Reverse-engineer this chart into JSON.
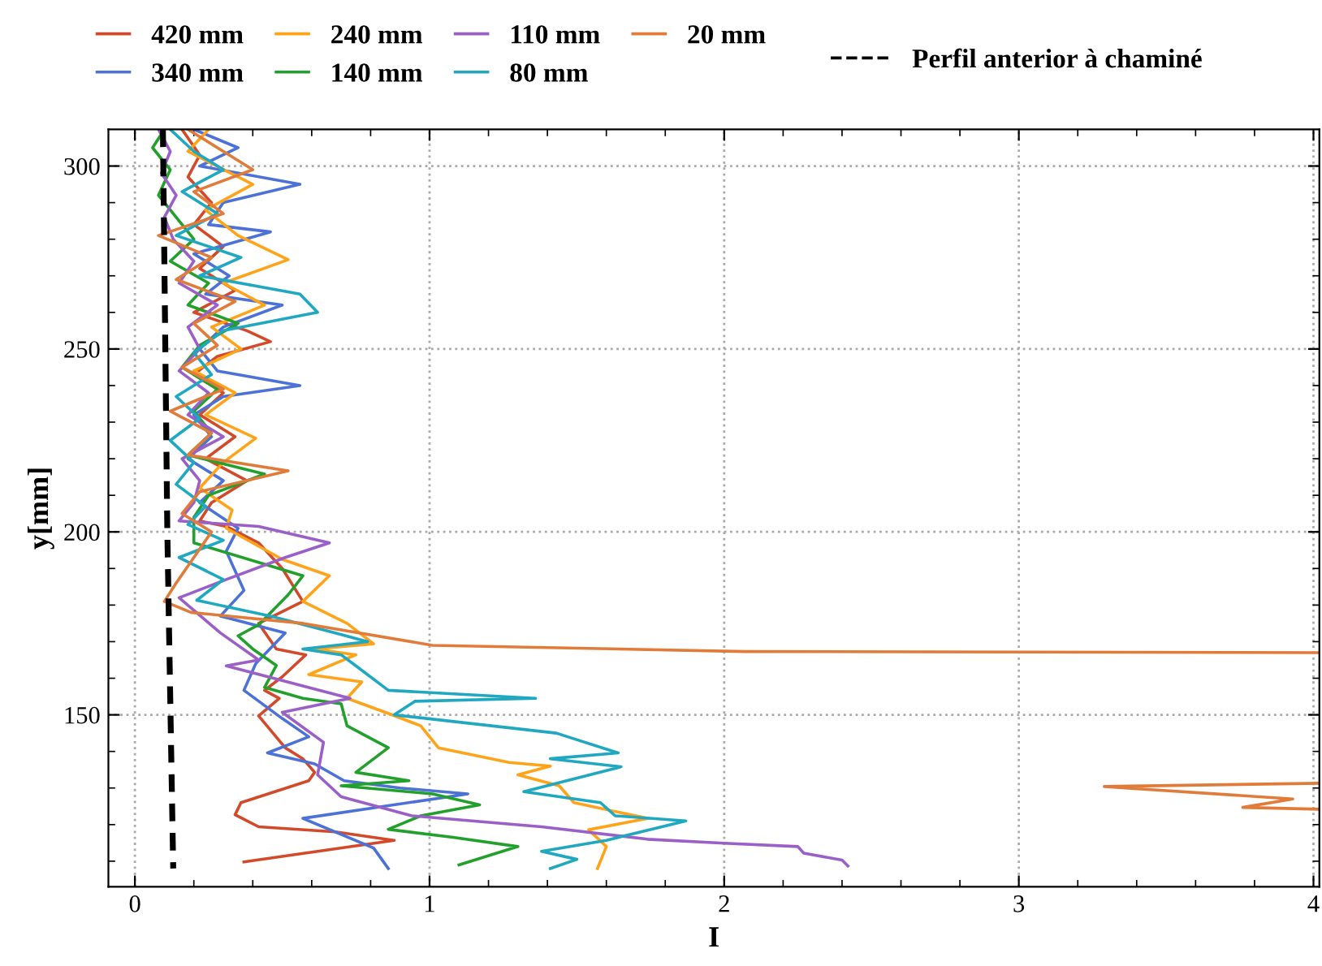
{
  "chart_data": {
    "type": "line",
    "xlabel": "I",
    "ylabel": "y[mm]",
    "xlim": [
      -0.09,
      4.02
    ],
    "ylim": [
      103,
      310
    ],
    "xticks": [
      0,
      {
        "value": 0.2,
        "label": null
      },
      {
        "value": 0.4,
        "label": null
      },
      {
        "value": 0.6,
        "label": null
      },
      {
        "value": 0.8,
        "label": null
      },
      1,
      {
        "value": 1.2,
        "label": null
      },
      {
        "value": 1.4,
        "label": null
      },
      {
        "value": 1.6,
        "label": null
      },
      {
        "value": 1.8,
        "label": null
      },
      2,
      {
        "value": 2.2,
        "label": null
      },
      {
        "value": 2.4,
        "label": null
      },
      {
        "value": 2.6,
        "label": null
      },
      {
        "value": 2.8,
        "label": null
      },
      3,
      {
        "value": 3.2,
        "label": null
      },
      {
        "value": 3.4,
        "label": null
      },
      {
        "value": 3.6,
        "label": null
      },
      {
        "value": 3.8,
        "label": null
      },
      4
    ],
    "yticks": [
      {
        "value": 110,
        "label": null
      },
      {
        "value": 120,
        "label": null
      },
      {
        "value": 130,
        "label": null
      },
      {
        "value": 140,
        "label": null
      },
      150,
      {
        "value": 160,
        "label": null
      },
      {
        "value": 170,
        "label": null
      },
      {
        "value": 180,
        "label": null
      },
      {
        "value": 190,
        "label": null
      },
      200,
      {
        "value": 210,
        "label": null
      },
      {
        "value": 220,
        "label": null
      },
      {
        "value": 230,
        "label": null
      },
      {
        "value": 240,
        "label": null
      },
      250,
      {
        "value": 260,
        "label": null
      },
      {
        "value": 270,
        "label": null
      },
      {
        "value": 280,
        "label": null
      },
      {
        "value": 290,
        "label": null
      },
      300
    ],
    "grid": true,
    "legend": "top",
    "marker": "none",
    "series": [
      {
        "name": "420 mm",
        "color": "#d24a2a",
        "x": [
          0.16,
          0.22,
          0.18,
          0.26,
          0.2,
          0.3,
          0.22,
          0.34,
          0.2,
          0.38,
          0.46,
          0.28,
          0.2,
          0.3,
          0.22,
          0.34,
          0.24,
          0.38,
          0.26,
          0.22,
          0.31,
          0.42,
          0.5,
          0.57,
          0.42,
          0.48,
          0.58,
          0.5,
          0.44,
          0.49,
          0.42,
          0.51,
          0.57,
          0.61,
          0.59,
          0.36,
          0.34,
          0.42,
          0.68,
          0.88,
          0.37
        ],
        "values": [
          310,
          303,
          297,
          290,
          284,
          278,
          272,
          266,
          260,
          255,
          252,
          248,
          243,
          238,
          232,
          226,
          220,
          214,
          208,
          203,
          201.5,
          197,
          190,
          181,
          175,
          168,
          166.4,
          160.4,
          156.7,
          154.5,
          149.7,
          141,
          138,
          134.3,
          132,
          126,
          122.7,
          119.4,
          118,
          115.7,
          109.8
        ]
      },
      {
        "name": "340 mm",
        "color": "#4c72d8",
        "x": [
          0.2,
          0.35,
          0.22,
          0.56,
          0.3,
          0.25,
          0.46,
          0.2,
          0.32,
          0.24,
          0.5,
          0.3,
          0.22,
          0.28,
          0.56,
          0.3,
          0.2,
          0.26,
          0.18,
          0.3,
          0.22,
          0.35,
          0.31,
          0.37,
          0.29,
          0.51,
          0.41,
          0.37,
          0.5,
          0.59,
          0.45,
          0.61,
          0.71,
          0.9,
          1.13,
          0.57,
          0.81,
          0.86
        ],
        "values": [
          310,
          305,
          300,
          295,
          290,
          284,
          282,
          276,
          270,
          265,
          262,
          256,
          250,
          244,
          240,
          237,
          232,
          226,
          220,
          214,
          208,
          201,
          194.7,
          184,
          177,
          172.4,
          164,
          156.7,
          149,
          144,
          139.6,
          136.6,
          132,
          130,
          128.4,
          121.7,
          113.6,
          108
        ]
      },
      {
        "name": "240 mm",
        "color": "#ffa318",
        "x": [
          0.25,
          0.18,
          0.4,
          0.24,
          0.35,
          0.52,
          0.3,
          0.44,
          0.26,
          0.36,
          0.2,
          0.34,
          0.24,
          0.41,
          0.3,
          0.22,
          0.33,
          0.31,
          0.5,
          0.66,
          0.57,
          0.72,
          0.81,
          0.61,
          0.75,
          0.59,
          0.77,
          0.72,
          0.85,
          0.97,
          1.03,
          1.27,
          1.41,
          1.3,
          1.44,
          1.49,
          1.74,
          1.54,
          1.6,
          1.57
        ],
        "values": [
          310,
          304,
          295,
          288,
          281,
          274.4,
          268,
          262,
          256,
          250,
          244,
          238,
          232,
          225.6,
          219,
          212,
          206,
          201,
          192.5,
          188,
          181,
          175,
          169.4,
          168,
          166.4,
          161,
          159,
          154.5,
          150.7,
          147,
          141,
          137,
          136,
          133.6,
          130.6,
          126,
          121.7,
          118.6,
          114,
          108
        ]
      },
      {
        "name": "140 mm",
        "color": "#22a02c",
        "x": [
          0.1,
          0.06,
          0.12,
          0.08,
          0.14,
          0.2,
          0.12,
          0.25,
          0.18,
          0.35,
          0.22,
          0.16,
          0.28,
          0.2,
          0.26,
          0.18,
          0.44,
          0.25,
          0.2,
          0.2,
          0.57,
          0.52,
          0.42,
          0.35,
          0.4,
          0.48,
          0.44,
          0.57,
          0.7,
          0.72,
          0.86,
          0.75,
          0.93,
          0.7,
          1.01,
          1.17,
          0.97,
          0.86,
          1.08,
          1.3,
          1.1
        ],
        "values": [
          310,
          305,
          299,
          292,
          286,
          280,
          274,
          268,
          262,
          257,
          251,
          245,
          239,
          233,
          227,
          221,
          215.8,
          210,
          204,
          197,
          188,
          182.8,
          174.6,
          171.6,
          168,
          163.5,
          157.5,
          154.5,
          153,
          147,
          141,
          134.3,
          132,
          130.6,
          128.4,
          125.4,
          122.4,
          118.7,
          116.5,
          114,
          109
        ]
      },
      {
        "name": "110 mm",
        "color": "#9b5fc8",
        "x": [
          0.08,
          0.12,
          0.09,
          0.14,
          0.1,
          0.13,
          0.2,
          0.15,
          0.28,
          0.18,
          0.22,
          0.15,
          0.25,
          0.18,
          0.3,
          0.16,
          0.22,
          0.2,
          0.15,
          0.42,
          0.66,
          0.51,
          0.31,
          0.15,
          0.29,
          0.42,
          0.31,
          0.73,
          0.5,
          0.64,
          0.62,
          0.7,
          0.94,
          1.38,
          1.74,
          2.0,
          2.25,
          2.27,
          2.4,
          2.42
        ],
        "values": [
          310,
          304,
          298,
          292,
          286,
          280,
          274,
          268,
          262,
          256,
          250,
          244,
          238,
          232,
          226,
          220,
          214,
          208,
          203,
          201.5,
          197,
          193,
          187,
          182,
          172.4,
          165,
          163.4,
          154.5,
          150.7,
          142.5,
          133.6,
          127.6,
          122.4,
          119.4,
          116,
          114.9,
          114,
          112.2,
          110.3,
          108.7
        ]
      },
      {
        "name": "80 mm",
        "color": "#1fa8c0",
        "x": [
          0.12,
          0.2,
          0.3,
          0.16,
          0.28,
          0.14,
          0.36,
          0.22,
          0.56,
          0.62,
          0.3,
          0.2,
          0.26,
          0.14,
          0.22,
          0.12,
          0.2,
          0.14,
          0.24,
          0.18,
          0.3,
          0.15,
          0.3,
          0.21,
          0.46,
          0.68,
          0.79,
          0.57,
          0.7,
          0.75,
          0.86,
          1.36,
          0.95,
          0.88,
          1.43,
          1.64,
          1.41,
          1.65,
          1.32,
          1.58,
          1.63,
          1.87,
          1.6,
          1.38,
          1.5,
          1.41
        ],
        "values": [
          310,
          304,
          299,
          293,
          287,
          281,
          275,
          270,
          265,
          260,
          255,
          249,
          243,
          237,
          231,
          225,
          219,
          213,
          207,
          202,
          197.7,
          193,
          187,
          181.3,
          177,
          172.4,
          170,
          168,
          166.4,
          163.4,
          156.7,
          154.5,
          153.7,
          150,
          145,
          139.6,
          138,
          135.8,
          129,
          126,
          122.4,
          121,
          115.7,
          112.7,
          110.5,
          108
        ]
      },
      {
        "name": "20 mm",
        "color": "#e07b3a",
        "x": [
          0.18,
          0.28,
          0.4,
          0.2,
          0.3,
          0.08,
          0.26,
          0.14,
          0.34,
          0.2,
          0.28,
          0.16,
          0.3,
          0.12,
          0.26,
          0.18,
          0.52,
          0.22,
          0.16,
          0.26,
          0.2,
          0.14,
          0.1,
          0.19,
          0.57,
          1.01,
          2.07,
          4.02,
          null,
          4.02,
          3.29,
          3.93,
          3.76,
          4.02
        ],
        "values": [
          310,
          305,
          299,
          293,
          287,
          281,
          275,
          269,
          263,
          257,
          251,
          245,
          239,
          233,
          227,
          221,
          216.7,
          211,
          205,
          200,
          193,
          186,
          181,
          178,
          175,
          169,
          167.3,
          167,
          null,
          131.3,
          130.4,
          127,
          124.7,
          124.2
        ]
      },
      {
        "name": "Perfil anterior à chaminé",
        "color": "#000000",
        "line_style": "dashed",
        "x": [
          0.095,
          0.11,
          0.13
        ],
        "values": [
          310,
          200,
          108
        ]
      }
    ]
  }
}
